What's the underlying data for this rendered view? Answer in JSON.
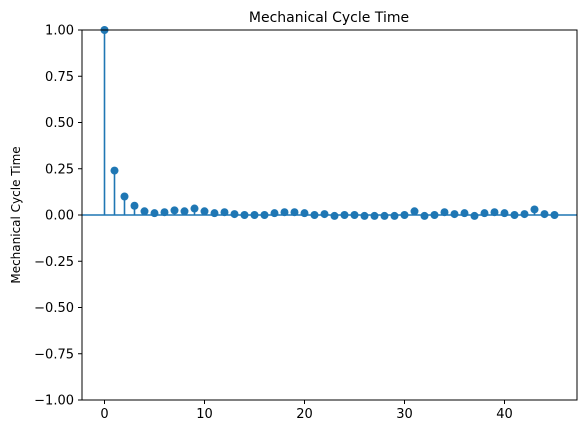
{
  "chart_data": {
    "type": "stem",
    "title": "Mechanical Cycle Time",
    "ylabel": "Mechanical Cycle Time",
    "xlabel": "",
    "xlim": [
      -2.25,
      47.25
    ],
    "ylim": [
      -1.0,
      1.0
    ],
    "xticks": [
      0,
      10,
      20,
      30,
      40
    ],
    "yticks": [
      -1.0,
      -0.75,
      -0.5,
      -0.25,
      0.0,
      0.25,
      0.5,
      0.75,
      1.0
    ],
    "ytick_labels": [
      "−1.00",
      "−0.75",
      "−0.50",
      "−0.25",
      "0.00",
      "0.25",
      "0.50",
      "0.75",
      "1.00"
    ],
    "grid": false,
    "color": "#1f77b4",
    "series": [
      {
        "lags": [
          0,
          1,
          2,
          3,
          4,
          5,
          6,
          7,
          8,
          9,
          10,
          11,
          12,
          13,
          14,
          15,
          16,
          17,
          18,
          19,
          20,
          21,
          22,
          23,
          24,
          25,
          26,
          27,
          28,
          29,
          30,
          31,
          32,
          33,
          34,
          35,
          36,
          37,
          38,
          39,
          40,
          41,
          42,
          43,
          44,
          45
        ],
        "values": [
          1.0,
          0.24,
          0.1,
          0.05,
          0.02,
          0.01,
          0.015,
          0.025,
          0.02,
          0.035,
          0.02,
          0.01,
          0.015,
          0.005,
          0.0,
          0.0,
          0.0,
          0.01,
          0.015,
          0.015,
          0.01,
          0.0,
          0.005,
          -0.005,
          0.0,
          0.0,
          -0.005,
          -0.005,
          -0.005,
          -0.005,
          0.0,
          0.02,
          -0.005,
          0.0,
          0.015,
          0.005,
          0.01,
          -0.005,
          0.01,
          0.015,
          0.01,
          0.0,
          0.005,
          0.03,
          0.005,
          0.0
        ]
      }
    ]
  }
}
